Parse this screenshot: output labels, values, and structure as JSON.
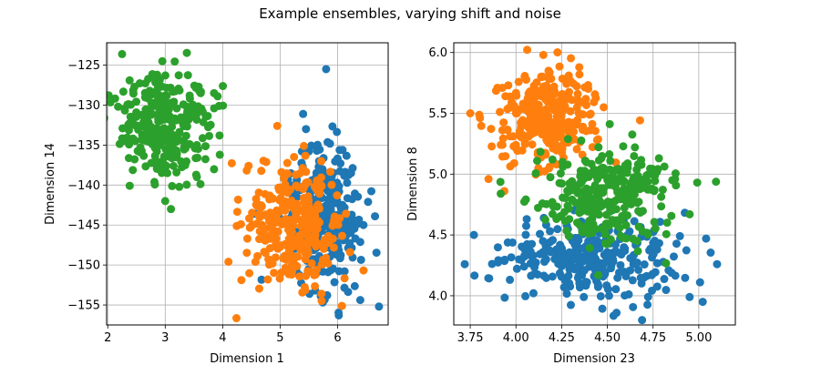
{
  "figure": {
    "suptitle": "Example ensembles, varying shift and noise"
  },
  "chart_data": [
    {
      "type": "scatter",
      "title": "",
      "xlabel": "Dimension 1",
      "ylabel": "Dimension 14",
      "xlim": [
        1.98,
        6.88
      ],
      "ylim": [
        -157.5,
        -122.2
      ],
      "xticks": [
        2,
        3,
        4,
        5,
        6
      ],
      "yticks": [
        -125,
        -130,
        -135,
        -140,
        -145,
        -150,
        -155
      ],
      "xtick_labels": [
        "2",
        "3",
        "4",
        "5",
        "6"
      ],
      "ytick_labels": [
        "−125",
        "−130",
        "−135",
        "−140",
        "−145",
        "−150",
        "−155"
      ],
      "grid": true,
      "series": [
        {
          "color": "#1f77b4",
          "center": [
            5.75,
            -143.8
          ],
          "spread": [
            0.32,
            4.3
          ],
          "count": 300,
          "points": [
            [
              5.8,
              -125.5
            ],
            [
              6.72,
              -155.2
            ],
            [
              6.02,
              -156.3
            ],
            [
              5.45,
              -133.0
            ],
            [
              6.45,
              -145.0
            ]
          ]
        },
        {
          "color": "#ff7f0e",
          "center": [
            5.2,
            -145.0
          ],
          "spread": [
            0.45,
            3.6
          ],
          "count": 300,
          "points": [
            [
              4.1,
              -149.6
            ],
            [
              4.45,
              -137.6
            ],
            [
              4.95,
              -132.6
            ],
            [
              5.72,
              -153.6
            ],
            [
              5.2,
              -151.2
            ]
          ]
        },
        {
          "color": "#2ca02c",
          "center": [
            3.0,
            -132.5
          ],
          "spread": [
            0.38,
            3.2
          ],
          "count": 300,
          "points": [
            [
              2.18,
              -130.2
            ],
            [
              3.0,
              -142.0
            ],
            [
              3.1,
              -143.0
            ],
            [
              3.55,
              -139.0
            ],
            [
              3.85,
              -128.5
            ],
            [
              3.95,
              -136.2
            ],
            [
              2.95,
              -124.5
            ]
          ]
        }
      ]
    },
    {
      "type": "scatter",
      "title": "",
      "xlabel": "Dimension 23",
      "ylabel": "Dimension 8",
      "xlim": [
        3.66,
        5.2
      ],
      "ylim": [
        3.76,
        6.08
      ],
      "xticks": [
        3.75,
        4.0,
        4.25,
        4.5,
        4.75,
        5.0
      ],
      "yticks": [
        4.0,
        4.5,
        5.0,
        5.5,
        6.0
      ],
      "xtick_labels": [
        "3.75",
        "4.00",
        "4.25",
        "4.50",
        "4.75",
        "5.00"
      ],
      "ytick_labels": [
        "4.0",
        "4.5",
        "5.0",
        "5.5",
        "6.0"
      ],
      "grid": true,
      "series": [
        {
          "color": "#1f77b4",
          "center": [
            4.4,
            4.3
          ],
          "spread": [
            0.25,
            0.17
          ],
          "count": 300,
          "points": [
            [
              3.72,
              4.26
            ],
            [
              3.77,
              4.5
            ],
            [
              5.1,
              4.26
            ],
            [
              5.04,
              4.47
            ],
            [
              4.95,
              3.99
            ],
            [
              4.55,
              3.86
            ]
          ]
        },
        {
          "color": "#ff7f0e",
          "center": [
            4.17,
            5.45
          ],
          "spread": [
            0.14,
            0.2
          ],
          "count": 300,
          "points": [
            [
              4.15,
              5.98
            ],
            [
              3.75,
              5.5
            ],
            [
              3.85,
              4.96
            ],
            [
              4.48,
              5.55
            ]
          ]
        },
        {
          "color": "#2ca02c",
          "center": [
            4.5,
            4.85
          ],
          "spread": [
            0.17,
            0.2
          ],
          "count": 300,
          "points": [
            [
              4.95,
              4.67
            ],
            [
              4.87,
              4.96
            ],
            [
              4.35,
              4.58
            ],
            [
              4.2,
              5.12
            ],
            [
              4.45,
              4.17
            ]
          ]
        }
      ]
    }
  ]
}
